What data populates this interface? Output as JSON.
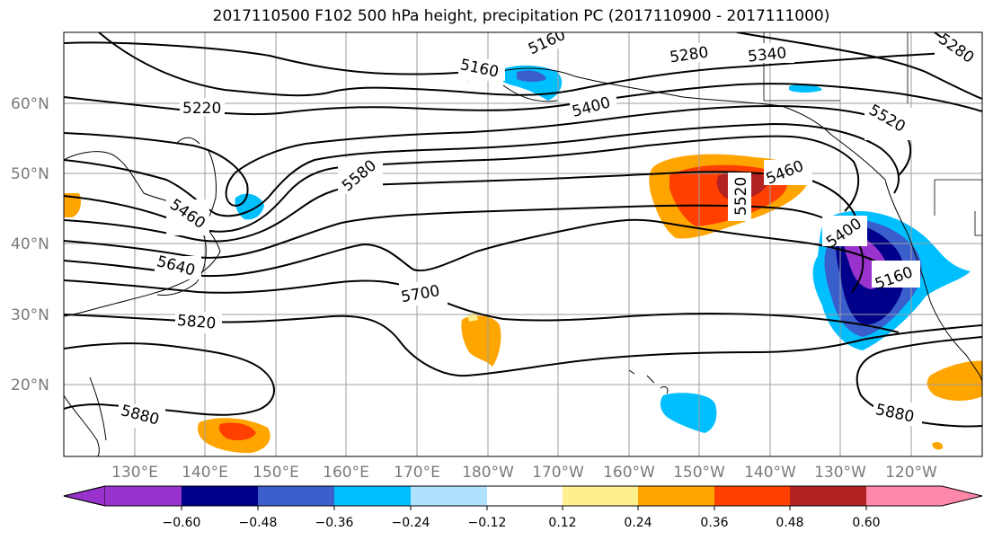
{
  "title": "2017110500 F102 500 hPa height, precipitation PC (2017110900 - 2017111000)",
  "map": {
    "lat_labels": [
      "60°N",
      "50°N",
      "40°N",
      "30°N",
      "20°N"
    ],
    "lon_labels": [
      "130°E",
      "140°E",
      "150°E",
      "160°E",
      "170°E",
      "180°W",
      "170°W",
      "160°W",
      "150°W",
      "140°W",
      "130°W",
      "120°W"
    ],
    "contour_labels": [
      "5160",
      "5220",
      "5280",
      "5340",
      "5280",
      "5160",
      "5400",
      "5520",
      "5460",
      "5580",
      "5640",
      "5700",
      "5820",
      "5880",
      "5880",
      "5460",
      "5520",
      "5400",
      "5160"
    ]
  },
  "colorbar": {
    "ticks": [
      "−0.60",
      "−0.48",
      "−0.36",
      "−0.24",
      "−0.12",
      "0.12",
      "0.24",
      "0.36",
      "0.48",
      "0.60"
    ],
    "colors": [
      "#9a32cd",
      "#00008b",
      "#3a5fcd",
      "#00bfff",
      "#b0e2ff",
      "#ffffff",
      "#fff08f",
      "#ffa500",
      "#ff4000",
      "#b22222",
      "#ff88aa"
    ]
  }
}
